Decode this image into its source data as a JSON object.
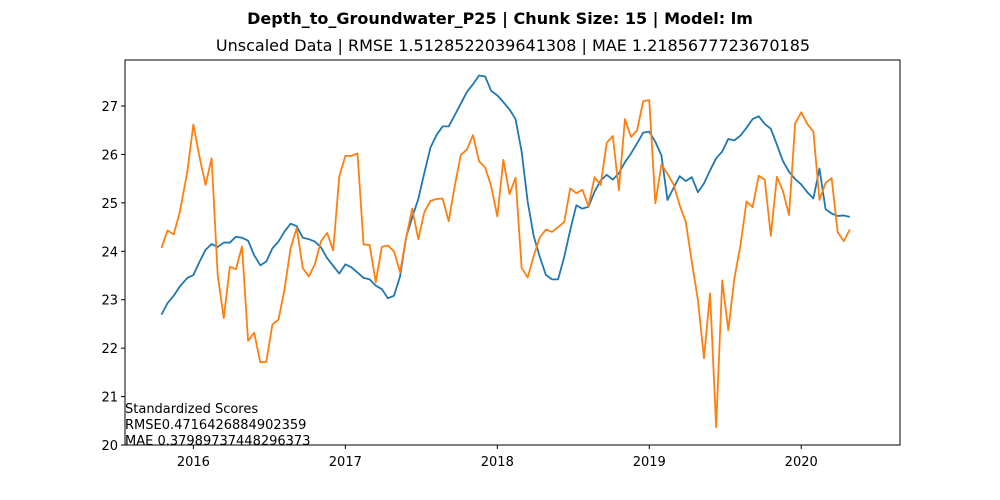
{
  "chart_data": {
    "type": "line",
    "title": "Depth_to_Groundwater_P25 | Chunk Size: 15 | Model: lm",
    "subtitle": "Unscaled Data | RMSE 1.5128522039641308 | MAE 1.2185677723670185",
    "xlabel": "",
    "ylabel": "",
    "xlim": [
      2015.55,
      2020.65
    ],
    "ylim": [
      20,
      27.95
    ],
    "xticks": [
      2016,
      2017,
      2018,
      2019,
      2020
    ],
    "xtick_labels": [
      "2016",
      "2017",
      "2018",
      "2019",
      "2020"
    ],
    "yticks": [
      20,
      21,
      22,
      23,
      24,
      25,
      26,
      27
    ],
    "ytick_labels": [
      "20",
      "21",
      "22",
      "23",
      "24",
      "25",
      "26",
      "27"
    ],
    "grid": false,
    "legend": "none",
    "annotation": [
      "Standardized Scores",
      "RMSE0.4716426884902359",
      "MAE 0.37989737448296373"
    ],
    "series": [
      {
        "color": "#1f77b4",
        "points": [
          [
            2015.79,
            22.69
          ],
          [
            2015.83,
            22.93
          ],
          [
            2015.87,
            23.08
          ],
          [
            2015.91,
            23.27
          ],
          [
            2015.96,
            23.45
          ],
          [
            2016.0,
            23.51
          ],
          [
            2016.04,
            23.78
          ],
          [
            2016.08,
            24.03
          ],
          [
            2016.12,
            24.15
          ],
          [
            2016.16,
            24.09
          ],
          [
            2016.2,
            24.18
          ],
          [
            2016.24,
            24.18
          ],
          [
            2016.28,
            24.3
          ],
          [
            2016.32,
            24.28
          ],
          [
            2016.36,
            24.22
          ],
          [
            2016.4,
            23.92
          ],
          [
            2016.44,
            23.71
          ],
          [
            2016.48,
            23.79
          ],
          [
            2016.52,
            24.06
          ],
          [
            2016.56,
            24.2
          ],
          [
            2016.6,
            24.41
          ],
          [
            2016.64,
            24.57
          ],
          [
            2016.68,
            24.52
          ],
          [
            2016.72,
            24.28
          ],
          [
            2016.76,
            24.25
          ],
          [
            2016.8,
            24.2
          ],
          [
            2016.84,
            24.08
          ],
          [
            2016.88,
            23.86
          ],
          [
            2016.92,
            23.7
          ],
          [
            2016.96,
            23.54
          ],
          [
            2017.0,
            23.73
          ],
          [
            2017.04,
            23.67
          ],
          [
            2017.08,
            23.56
          ],
          [
            2017.12,
            23.45
          ],
          [
            2017.16,
            23.42
          ],
          [
            2017.2,
            23.29
          ],
          [
            2017.24,
            23.22
          ],
          [
            2017.28,
            23.03
          ],
          [
            2017.32,
            23.08
          ],
          [
            2017.36,
            23.48
          ],
          [
            2017.4,
            24.29
          ],
          [
            2017.44,
            24.7
          ],
          [
            2017.48,
            25.08
          ],
          [
            2017.52,
            25.62
          ],
          [
            2017.56,
            26.14
          ],
          [
            2017.6,
            26.4
          ],
          [
            2017.64,
            26.58
          ],
          [
            2017.68,
            26.58
          ],
          [
            2017.72,
            26.81
          ],
          [
            2017.76,
            27.05
          ],
          [
            2017.8,
            27.29
          ],
          [
            2017.84,
            27.45
          ],
          [
            2017.88,
            27.63
          ],
          [
            2017.92,
            27.61
          ],
          [
            2017.96,
            27.31
          ],
          [
            2018.0,
            27.22
          ],
          [
            2018.04,
            27.08
          ],
          [
            2018.08,
            26.93
          ],
          [
            2018.12,
            26.73
          ],
          [
            2018.16,
            26.06
          ],
          [
            2018.2,
            25.02
          ],
          [
            2018.24,
            24.31
          ],
          [
            2018.28,
            23.88
          ],
          [
            2018.32,
            23.51
          ],
          [
            2018.36,
            23.42
          ],
          [
            2018.4,
            23.42
          ],
          [
            2018.44,
            23.88
          ],
          [
            2018.48,
            24.44
          ],
          [
            2018.52,
            24.95
          ],
          [
            2018.56,
            24.88
          ],
          [
            2018.6,
            24.92
          ],
          [
            2018.64,
            25.23
          ],
          [
            2018.68,
            25.46
          ],
          [
            2018.72,
            25.58
          ],
          [
            2018.76,
            25.48
          ],
          [
            2018.8,
            25.61
          ],
          [
            2018.84,
            25.84
          ],
          [
            2018.88,
            26.02
          ],
          [
            2018.92,
            26.23
          ],
          [
            2018.96,
            26.45
          ],
          [
            2019.0,
            26.47
          ],
          [
            2019.04,
            26.26
          ],
          [
            2019.08,
            25.98
          ],
          [
            2019.12,
            25.06
          ],
          [
            2019.16,
            25.31
          ],
          [
            2019.2,
            25.55
          ],
          [
            2019.24,
            25.45
          ],
          [
            2019.28,
            25.53
          ],
          [
            2019.32,
            25.22
          ],
          [
            2019.36,
            25.4
          ],
          [
            2019.4,
            25.67
          ],
          [
            2019.44,
            25.92
          ],
          [
            2019.48,
            26.06
          ],
          [
            2019.52,
            26.32
          ],
          [
            2019.56,
            26.29
          ],
          [
            2019.6,
            26.39
          ],
          [
            2019.64,
            26.55
          ],
          [
            2019.68,
            26.73
          ],
          [
            2019.72,
            26.79
          ],
          [
            2019.76,
            26.63
          ],
          [
            2019.8,
            26.53
          ],
          [
            2019.84,
            26.2
          ],
          [
            2019.88,
            25.86
          ],
          [
            2019.92,
            25.64
          ],
          [
            2019.96,
            25.49
          ],
          [
            2020.0,
            25.38
          ],
          [
            2020.04,
            25.22
          ],
          [
            2020.08,
            25.09
          ],
          [
            2020.12,
            25.71
          ],
          [
            2020.16,
            24.87
          ],
          [
            2020.2,
            24.78
          ],
          [
            2020.24,
            24.73
          ],
          [
            2020.28,
            24.74
          ],
          [
            2020.32,
            24.71
          ]
        ]
      },
      {
        "color": "#ff7f0e",
        "points": [
          [
            2015.79,
            24.07
          ],
          [
            2015.83,
            24.43
          ],
          [
            2015.87,
            24.35
          ],
          [
            2015.91,
            24.8
          ],
          [
            2015.96,
            25.64
          ],
          [
            2016.0,
            26.62
          ],
          [
            2016.04,
            25.95
          ],
          [
            2016.08,
            25.37
          ],
          [
            2016.12,
            25.92
          ],
          [
            2016.16,
            23.51
          ],
          [
            2016.2,
            22.62
          ],
          [
            2016.24,
            23.68
          ],
          [
            2016.28,
            23.63
          ],
          [
            2016.32,
            24.1
          ],
          [
            2016.36,
            22.15
          ],
          [
            2016.4,
            22.32
          ],
          [
            2016.44,
            21.71
          ],
          [
            2016.48,
            21.72
          ],
          [
            2016.52,
            22.49
          ],
          [
            2016.56,
            22.59
          ],
          [
            2016.6,
            23.22
          ],
          [
            2016.64,
            24.07
          ],
          [
            2016.68,
            24.48
          ],
          [
            2016.72,
            23.65
          ],
          [
            2016.76,
            23.48
          ],
          [
            2016.8,
            23.74
          ],
          [
            2016.84,
            24.21
          ],
          [
            2016.88,
            24.38
          ],
          [
            2016.92,
            24.02
          ],
          [
            2016.96,
            25.54
          ],
          [
            2017.0,
            25.97
          ],
          [
            2017.04,
            25.97
          ],
          [
            2017.08,
            26.02
          ],
          [
            2017.12,
            24.14
          ],
          [
            2017.16,
            24.13
          ],
          [
            2017.2,
            23.36
          ],
          [
            2017.24,
            24.09
          ],
          [
            2017.28,
            24.12
          ],
          [
            2017.32,
            24.0
          ],
          [
            2017.36,
            23.57
          ],
          [
            2017.4,
            24.28
          ],
          [
            2017.44,
            24.88
          ],
          [
            2017.48,
            24.25
          ],
          [
            2017.52,
            24.81
          ],
          [
            2017.56,
            25.04
          ],
          [
            2017.6,
            25.08
          ],
          [
            2017.64,
            25.09
          ],
          [
            2017.68,
            24.62
          ],
          [
            2017.72,
            25.35
          ],
          [
            2017.76,
            25.99
          ],
          [
            2017.8,
            26.1
          ],
          [
            2017.84,
            26.4
          ],
          [
            2017.88,
            25.86
          ],
          [
            2017.92,
            25.73
          ],
          [
            2017.96,
            25.34
          ],
          [
            2018.0,
            24.72
          ],
          [
            2018.04,
            25.89
          ],
          [
            2018.08,
            25.18
          ],
          [
            2018.12,
            25.52
          ],
          [
            2018.16,
            23.66
          ],
          [
            2018.2,
            23.46
          ],
          [
            2018.24,
            23.91
          ],
          [
            2018.28,
            24.29
          ],
          [
            2018.32,
            24.45
          ],
          [
            2018.36,
            24.4
          ],
          [
            2018.4,
            24.5
          ],
          [
            2018.44,
            24.6
          ],
          [
            2018.48,
            25.3
          ],
          [
            2018.52,
            25.2
          ],
          [
            2018.56,
            25.27
          ],
          [
            2018.6,
            24.93
          ],
          [
            2018.64,
            25.53
          ],
          [
            2018.68,
            25.37
          ],
          [
            2018.72,
            26.24
          ],
          [
            2018.76,
            26.38
          ],
          [
            2018.8,
            25.26
          ],
          [
            2018.84,
            26.73
          ],
          [
            2018.88,
            26.36
          ],
          [
            2018.92,
            26.5
          ],
          [
            2018.96,
            27.1
          ],
          [
            2019.0,
            27.12
          ],
          [
            2019.04,
            24.99
          ],
          [
            2019.08,
            25.79
          ],
          [
            2019.12,
            25.6
          ],
          [
            2019.16,
            25.38
          ],
          [
            2019.2,
            24.95
          ],
          [
            2019.24,
            24.61
          ],
          [
            2019.28,
            23.78
          ],
          [
            2019.32,
            23.0
          ],
          [
            2019.36,
            21.79
          ],
          [
            2019.4,
            23.13
          ],
          [
            2019.44,
            20.37
          ],
          [
            2019.48,
            23.4
          ],
          [
            2019.52,
            22.37
          ],
          [
            2019.56,
            23.44
          ],
          [
            2019.6,
            24.12
          ],
          [
            2019.64,
            25.03
          ],
          [
            2019.68,
            24.91
          ],
          [
            2019.72,
            25.56
          ],
          [
            2019.76,
            25.48
          ],
          [
            2019.8,
            24.32
          ],
          [
            2019.84,
            25.54
          ],
          [
            2019.88,
            25.24
          ],
          [
            2019.92,
            24.75
          ],
          [
            2019.96,
            26.64
          ],
          [
            2020.0,
            26.87
          ],
          [
            2020.04,
            26.63
          ],
          [
            2020.08,
            26.47
          ],
          [
            2020.12,
            25.06
          ],
          [
            2020.16,
            25.41
          ],
          [
            2020.2,
            25.51
          ],
          [
            2020.24,
            24.39
          ],
          [
            2020.28,
            24.21
          ],
          [
            2020.32,
            24.45
          ]
        ]
      }
    ]
  }
}
